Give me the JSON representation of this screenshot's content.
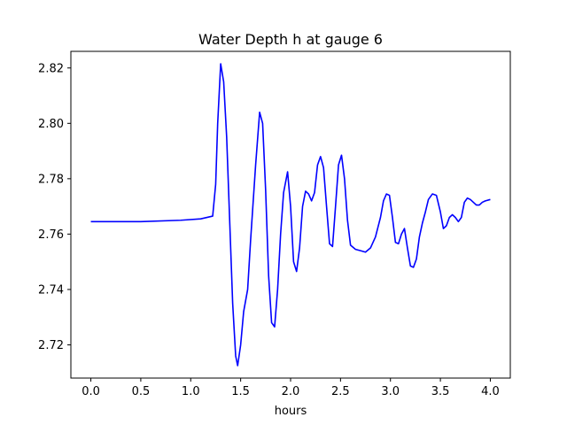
{
  "chart_data": {
    "type": "line",
    "title": "Water Depth h at gauge 6",
    "xlabel": "hours",
    "ylabel": "",
    "xlim": [
      -0.2,
      4.2
    ],
    "ylim": [
      2.708,
      2.826
    ],
    "grid": false,
    "x_ticks": [
      0.0,
      0.5,
      1.0,
      1.5,
      2.0,
      2.5,
      3.0,
      3.5,
      4.0
    ],
    "x_tick_labels": [
      "0.0",
      "0.5",
      "1.0",
      "1.5",
      "2.0",
      "2.5",
      "3.0",
      "3.5",
      "4.0"
    ],
    "y_ticks": [
      2.72,
      2.74,
      2.76,
      2.78,
      2.8,
      2.82
    ],
    "y_tick_labels": [
      "2.72",
      "2.74",
      "2.76",
      "2.78",
      "2.80",
      "2.82"
    ],
    "series": [
      {
        "color": "#0000ff",
        "x": [
          0.0,
          0.5,
          0.9,
          1.1,
          1.22,
          1.25,
          1.27,
          1.3,
          1.33,
          1.36,
          1.39,
          1.42,
          1.45,
          1.47,
          1.5,
          1.53,
          1.57,
          1.6,
          1.65,
          1.69,
          1.72,
          1.75,
          1.78,
          1.81,
          1.84,
          1.87,
          1.9,
          1.93,
          1.97,
          2.0,
          2.03,
          2.06,
          2.09,
          2.12,
          2.15,
          2.18,
          2.21,
          2.24,
          2.27,
          2.3,
          2.33,
          2.36,
          2.39,
          2.42,
          2.45,
          2.48,
          2.51,
          2.54,
          2.57,
          2.6,
          2.65,
          2.7,
          2.75,
          2.8,
          2.85,
          2.9,
          2.93,
          2.96,
          2.99,
          3.02,
          3.05,
          3.08,
          3.11,
          3.14,
          3.17,
          3.2,
          3.23,
          3.26,
          3.29,
          3.32,
          3.35,
          3.38,
          3.42,
          3.46,
          3.5,
          3.53,
          3.56,
          3.59,
          3.62,
          3.65,
          3.68,
          3.71,
          3.74,
          3.77,
          3.8,
          3.83,
          3.86,
          3.89,
          3.92,
          3.95,
          4.0
        ],
        "y": [
          2.7645,
          2.7645,
          2.765,
          2.7655,
          2.7665,
          2.778,
          2.8,
          2.8215,
          2.815,
          2.795,
          2.765,
          2.735,
          2.716,
          2.7125,
          2.72,
          2.732,
          2.74,
          2.758,
          2.785,
          2.804,
          2.8,
          2.776,
          2.745,
          2.728,
          2.7265,
          2.74,
          2.76,
          2.775,
          2.7825,
          2.77,
          2.75,
          2.7465,
          2.755,
          2.77,
          2.7755,
          2.7745,
          2.772,
          2.775,
          2.785,
          2.788,
          2.784,
          2.77,
          2.7565,
          2.7555,
          2.77,
          2.785,
          2.7885,
          2.78,
          2.765,
          2.756,
          2.7545,
          2.754,
          2.7535,
          2.755,
          2.759,
          2.766,
          2.772,
          2.7745,
          2.774,
          2.766,
          2.757,
          2.7565,
          2.76,
          2.762,
          2.755,
          2.7485,
          2.748,
          2.751,
          2.759,
          2.764,
          2.768,
          2.7725,
          2.7745,
          2.774,
          2.768,
          2.762,
          2.763,
          2.766,
          2.767,
          2.766,
          2.7645,
          2.766,
          2.7715,
          2.773,
          2.7725,
          2.7715,
          2.7705,
          2.7705,
          2.7715,
          2.772,
          2.7725
        ]
      }
    ]
  }
}
